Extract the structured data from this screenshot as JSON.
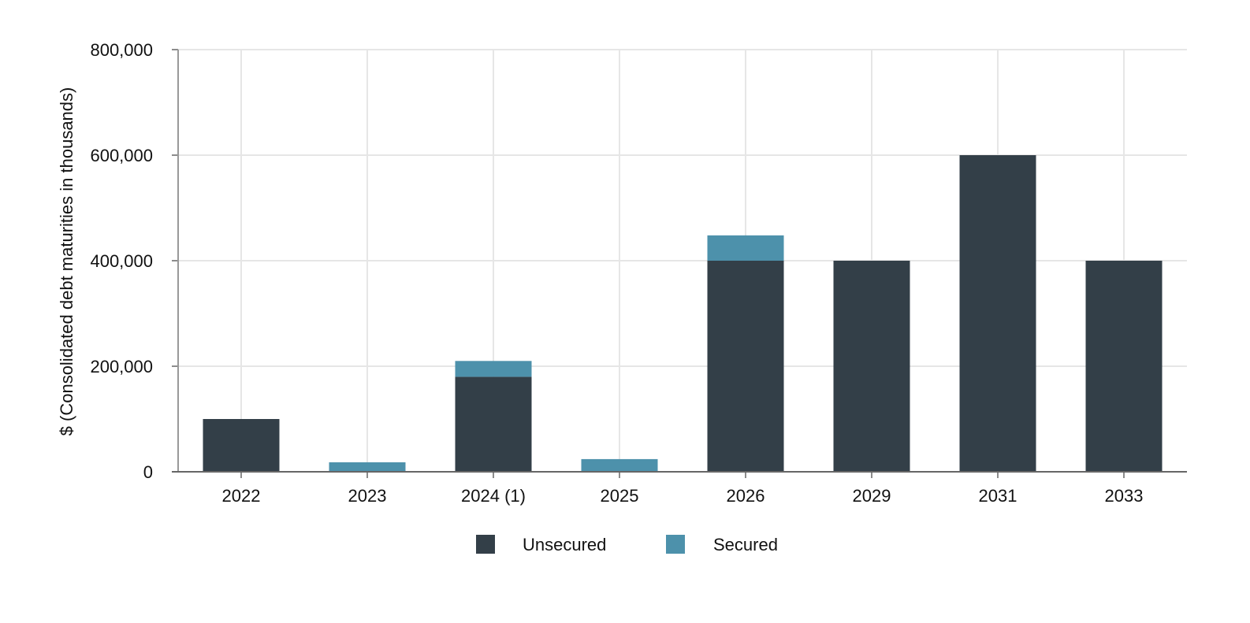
{
  "chart_data": {
    "type": "bar",
    "stacked": true,
    "title": "",
    "xlabel": "",
    "ylabel": "$ (Consolidated debt maturities in thousands)",
    "ylim": [
      0,
      800000
    ],
    "yticks": [
      "0",
      "200,000",
      "400,000",
      "600,000",
      "800,000"
    ],
    "ytick_values": [
      0,
      200000,
      400000,
      600000,
      800000
    ],
    "grid": true,
    "legend_position": "bottom-center",
    "categories": [
      "2022",
      "2023",
      "2024 (1)",
      "2025",
      "2026",
      "2029",
      "2031",
      "2033"
    ],
    "series": [
      {
        "name": "Unsecured",
        "color": "#333f48",
        "values": [
          100000,
          0,
          180000,
          0,
          400000,
          400000,
          600000,
          400000
        ]
      },
      {
        "name": "Secured",
        "color": "#4d91ab",
        "values": [
          0,
          18000,
          30000,
          24000,
          48000,
          0,
          0,
          0
        ]
      }
    ]
  }
}
